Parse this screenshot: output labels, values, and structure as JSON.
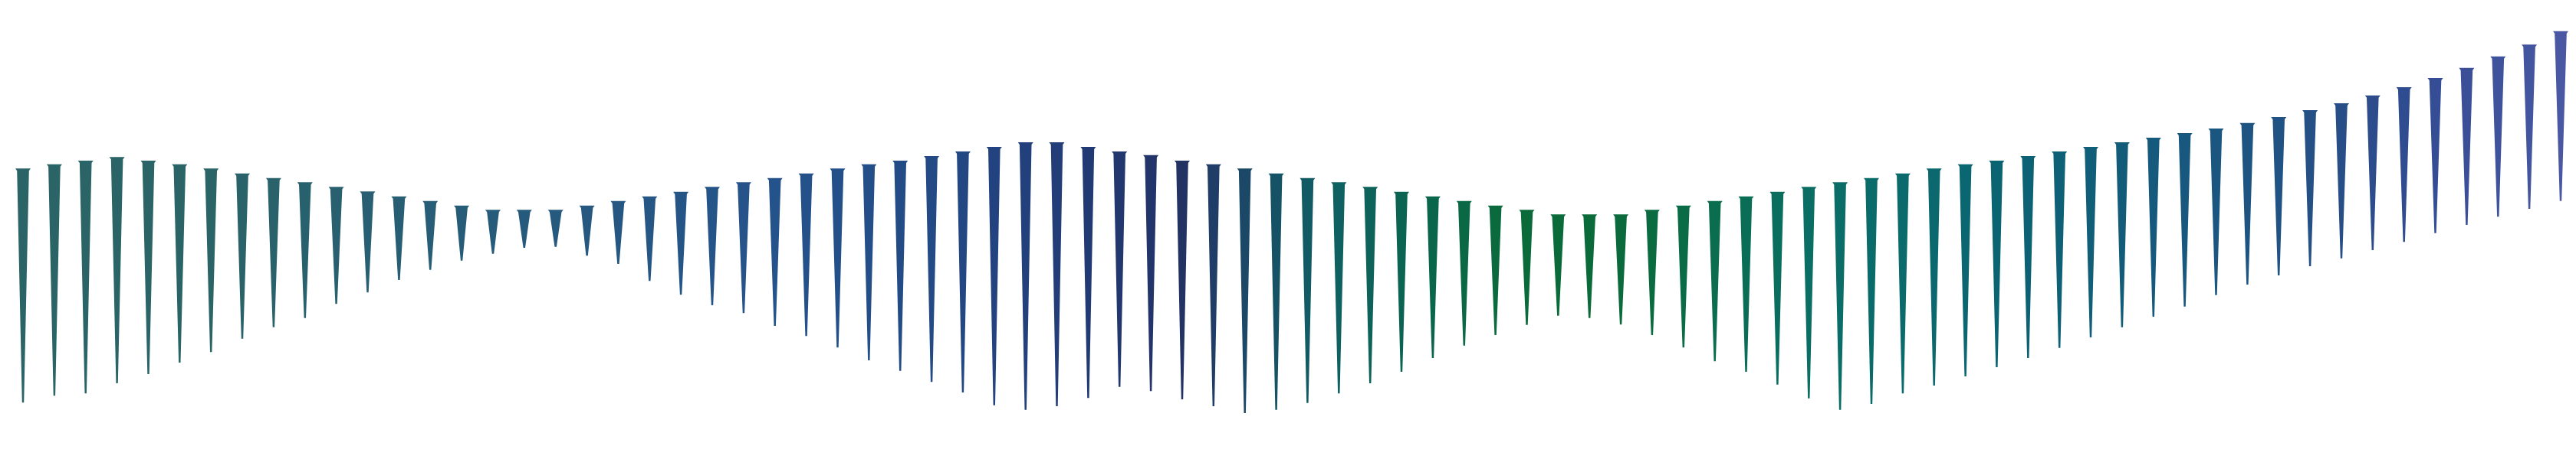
{
  "artwork": {
    "kind": "wedge-spike-waveform",
    "background_color": "#ffffff",
    "spike_count": 82,
    "palette": {
      "dark_navy": "#223162",
      "slate_teal": "#2a6466",
      "forest_green": "#0a6a3a",
      "deep_teal": "#0a5f6a",
      "indigo": "#4a57a2"
    },
    "spikes": [
      {
        "top": 0.367,
        "bottom": 0.877,
        "color": "#2a6466"
      },
      {
        "top": 0.358,
        "bottom": 0.862,
        "color": "#2a6466"
      },
      {
        "top": 0.35,
        "bottom": 0.857,
        "color": "#2a6466"
      },
      {
        "top": 0.342,
        "bottom": 0.835,
        "color": "#2a6466"
      },
      {
        "top": 0.35,
        "bottom": 0.815,
        "color": "#2a6466"
      },
      {
        "top": 0.358,
        "bottom": 0.79,
        "color": "#2a6466"
      },
      {
        "top": 0.367,
        "bottom": 0.767,
        "color": "#2a6466"
      },
      {
        "top": 0.378,
        "bottom": 0.738,
        "color": "#296369"
      },
      {
        "top": 0.388,
        "bottom": 0.713,
        "color": "#29626b"
      },
      {
        "top": 0.397,
        "bottom": 0.693,
        "color": "#28616e"
      },
      {
        "top": 0.407,
        "bottom": 0.662,
        "color": "#286070"
      },
      {
        "top": 0.417,
        "bottom": 0.637,
        "color": "#285f72"
      },
      {
        "top": 0.428,
        "bottom": 0.61,
        "color": "#275e74"
      },
      {
        "top": 0.438,
        "bottom": 0.588,
        "color": "#275d76"
      },
      {
        "top": 0.448,
        "bottom": 0.568,
        "color": "#265c78"
      },
      {
        "top": 0.457,
        "bottom": 0.553,
        "color": "#265b7a"
      },
      {
        "top": 0.457,
        "bottom": 0.54,
        "color": "#265a7c"
      },
      {
        "top": 0.457,
        "bottom": 0.538,
        "color": "#26597e"
      },
      {
        "top": 0.448,
        "bottom": 0.557,
        "color": "#265880"
      },
      {
        "top": 0.438,
        "bottom": 0.575,
        "color": "#255782"
      },
      {
        "top": 0.428,
        "bottom": 0.612,
        "color": "#255684"
      },
      {
        "top": 0.418,
        "bottom": 0.642,
        "color": "#255586"
      },
      {
        "top": 0.407,
        "bottom": 0.665,
        "color": "#255488"
      },
      {
        "top": 0.397,
        "bottom": 0.682,
        "color": "#25538a"
      },
      {
        "top": 0.388,
        "bottom": 0.71,
        "color": "#24528a"
      },
      {
        "top": 0.378,
        "bottom": 0.732,
        "color": "#24518a"
      },
      {
        "top": 0.367,
        "bottom": 0.757,
        "color": "#245089"
      },
      {
        "top": 0.358,
        "bottom": 0.785,
        "color": "#244e88"
      },
      {
        "top": 0.35,
        "bottom": 0.808,
        "color": "#234c86"
      },
      {
        "top": 0.34,
        "bottom": 0.832,
        "color": "#234a84"
      },
      {
        "top": 0.33,
        "bottom": 0.855,
        "color": "#234782"
      },
      {
        "top": 0.32,
        "bottom": 0.883,
        "color": "#234380"
      },
      {
        "top": 0.31,
        "bottom": 0.893,
        "color": "#22407c"
      },
      {
        "top": 0.31,
        "bottom": 0.885,
        "color": "#223d78"
      },
      {
        "top": 0.32,
        "bottom": 0.867,
        "color": "#223a73"
      },
      {
        "top": 0.33,
        "bottom": 0.843,
        "color": "#22376e"
      },
      {
        "top": 0.338,
        "bottom": 0.852,
        "color": "#223469"
      },
      {
        "top": 0.35,
        "bottom": 0.87,
        "color": "#223262"
      },
      {
        "top": 0.358,
        "bottom": 0.885,
        "color": "#1f3d66"
      },
      {
        "top": 0.367,
        "bottom": 0.9,
        "color": "#1a4866"
      },
      {
        "top": 0.378,
        "bottom": 0.893,
        "color": "#165266"
      },
      {
        "top": 0.388,
        "bottom": 0.878,
        "color": "#125a64"
      },
      {
        "top": 0.397,
        "bottom": 0.857,
        "color": "#0f6060"
      },
      {
        "top": 0.407,
        "bottom": 0.835,
        "color": "#0d625a"
      },
      {
        "top": 0.418,
        "bottom": 0.81,
        "color": "#0b6452"
      },
      {
        "top": 0.428,
        "bottom": 0.78,
        "color": "#0a664a"
      },
      {
        "top": 0.438,
        "bottom": 0.753,
        "color": "#0a6844"
      },
      {
        "top": 0.448,
        "bottom": 0.73,
        "color": "#0a6a3e"
      },
      {
        "top": 0.457,
        "bottom": 0.708,
        "color": "#0a6a3a"
      },
      {
        "top": 0.467,
        "bottom": 0.688,
        "color": "#0a6a3a"
      },
      {
        "top": 0.467,
        "bottom": 0.693,
        "color": "#0a6a3a"
      },
      {
        "top": 0.467,
        "bottom": 0.707,
        "color": "#0a6a3c"
      },
      {
        "top": 0.457,
        "bottom": 0.73,
        "color": "#0a6b40"
      },
      {
        "top": 0.448,
        "bottom": 0.757,
        "color": "#0a6c46"
      },
      {
        "top": 0.438,
        "bottom": 0.787,
        "color": "#0a6d4e"
      },
      {
        "top": 0.428,
        "bottom": 0.81,
        "color": "#0a6e56"
      },
      {
        "top": 0.418,
        "bottom": 0.838,
        "color": "#0a6e5e"
      },
      {
        "top": 0.407,
        "bottom": 0.868,
        "color": "#0a6e64"
      },
      {
        "top": 0.397,
        "bottom": 0.893,
        "color": "#0a6d68"
      },
      {
        "top": 0.388,
        "bottom": 0.88,
        "color": "#0a6c6a"
      },
      {
        "top": 0.378,
        "bottom": 0.857,
        "color": "#0a6a6c"
      },
      {
        "top": 0.367,
        "bottom": 0.84,
        "color": "#0a686e"
      },
      {
        "top": 0.358,
        "bottom": 0.82,
        "color": "#0a6670"
      },
      {
        "top": 0.35,
        "bottom": 0.8,
        "color": "#0b6472"
      },
      {
        "top": 0.34,
        "bottom": 0.78,
        "color": "#0c6274"
      },
      {
        "top": 0.33,
        "bottom": 0.758,
        "color": "#0e6076"
      },
      {
        "top": 0.32,
        "bottom": 0.735,
        "color": "#105e78"
      },
      {
        "top": 0.31,
        "bottom": 0.713,
        "color": "#125c7a"
      },
      {
        "top": 0.3,
        "bottom": 0.69,
        "color": "#155a7c"
      },
      {
        "top": 0.29,
        "bottom": 0.668,
        "color": "#18587e"
      },
      {
        "top": 0.28,
        "bottom": 0.643,
        "color": "#1b5680"
      },
      {
        "top": 0.268,
        "bottom": 0.62,
        "color": "#1e5482"
      },
      {
        "top": 0.255,
        "bottom": 0.6,
        "color": "#215284"
      },
      {
        "top": 0.24,
        "bottom": 0.58,
        "color": "#245086"
      },
      {
        "top": 0.225,
        "bottom": 0.563,
        "color": "#284e88"
      },
      {
        "top": 0.208,
        "bottom": 0.545,
        "color": "#2c4c8c"
      },
      {
        "top": 0.19,
        "bottom": 0.527,
        "color": "#304c90"
      },
      {
        "top": 0.17,
        "bottom": 0.508,
        "color": "#354d94"
      },
      {
        "top": 0.148,
        "bottom": 0.49,
        "color": "#3a4f98"
      },
      {
        "top": 0.123,
        "bottom": 0.472,
        "color": "#3f529c"
      },
      {
        "top": 0.097,
        "bottom": 0.455,
        "color": "#4455a0"
      },
      {
        "top": 0.068,
        "bottom": 0.438,
        "color": "#4a57a2"
      }
    ]
  }
}
